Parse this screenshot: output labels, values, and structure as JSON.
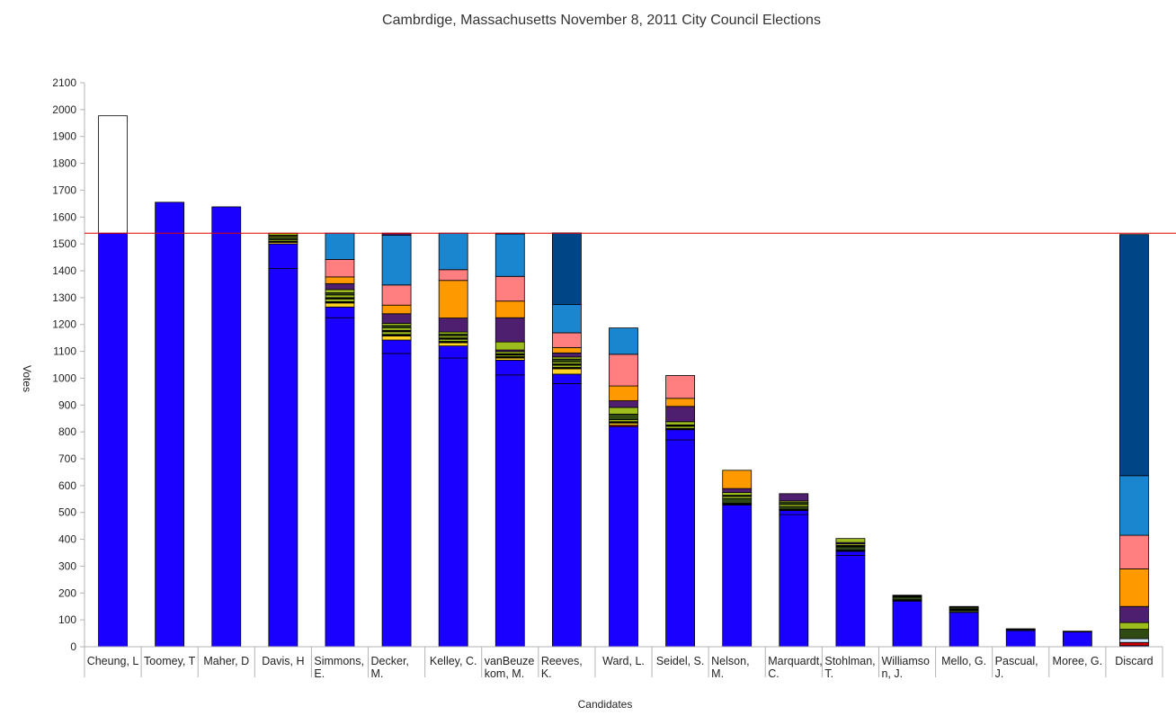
{
  "chart_data": {
    "type": "bar",
    "stacked": true,
    "title": "Cambrdige, Massachusetts November 8, 2011 City Council Elections",
    "xlabel": "Candidates",
    "ylabel": "Votes",
    "ylim": [
      0,
      2100
    ],
    "yticks": [
      0,
      100,
      200,
      300,
      400,
      500,
      600,
      700,
      800,
      900,
      1000,
      1100,
      1200,
      1300,
      1400,
      1500,
      1600,
      1700,
      1800,
      1900,
      2000,
      2100
    ],
    "grid": false,
    "legend": "none",
    "quota_line": 1540,
    "categories": [
      [
        "Cheung, L"
      ],
      [
        "Toomey, T"
      ],
      [
        "Maher, D"
      ],
      [
        "Davis, H"
      ],
      [
        "Simmons,",
        "E."
      ],
      [
        "Decker,",
        "M."
      ],
      [
        "Kelley, C."
      ],
      [
        "vanBeuze",
        "kom, M."
      ],
      [
        "Reeves,",
        "K."
      ],
      [
        "Ward, L."
      ],
      [
        "Seidel, S."
      ],
      [
        "Nelson,",
        "M."
      ],
      [
        "Marquardt,",
        "C."
      ],
      [
        "Stohlman,",
        "T."
      ],
      [
        "Williamso",
        "n, J."
      ],
      [
        "Mello, G."
      ],
      [
        "Pascual,",
        "J."
      ],
      [
        "Moree, G."
      ],
      [
        "Discard"
      ]
    ],
    "colors": {
      "blue": "#1a00ff",
      "red": "#cc0000",
      "lightblue": "#cfe6ff",
      "olive": "#2f4a14",
      "yellowgreen": "#9dbc1e",
      "purple": "#4e1f6e",
      "orange": "#ff9900",
      "pink": "#ff7f80",
      "skyblue": "#1a86d0",
      "navy": "#004586",
      "black": "#000000",
      "yellow": "#ffd320",
      "white": "#ffffff",
      "quota": "#e00000"
    },
    "series": [
      {
        "candidate": "Cheung, L",
        "segments": [
          [
            "blue",
            1540
          ],
          [
            "white",
            437
          ]
        ]
      },
      {
        "candidate": "Toomey, T",
        "segments": [
          [
            "blue",
            1655
          ]
        ]
      },
      {
        "candidate": "Maher, D",
        "segments": [
          [
            "blue",
            1638
          ]
        ]
      },
      {
        "candidate": "Davis, H",
        "segments": [
          [
            "blue",
            1408
          ],
          [
            "blue",
            92
          ],
          [
            "yellow",
            6
          ],
          [
            "black",
            4
          ],
          [
            "yellowgreen",
            6
          ],
          [
            "olive",
            6
          ],
          [
            "yellowgreen",
            6
          ],
          [
            "black",
            4
          ],
          [
            "yellowgreen",
            8
          ]
        ]
      },
      {
        "candidate": "Simmons, E.",
        "segments": [
          [
            "blue",
            1225
          ],
          [
            "blue",
            40
          ],
          [
            "yellow",
            15
          ],
          [
            "black",
            5
          ],
          [
            "yellowgreen",
            10
          ],
          [
            "black",
            5
          ],
          [
            "yellowgreen",
            10
          ],
          [
            "olive",
            8
          ],
          [
            "yellowgreen",
            12
          ],
          [
            "purple",
            22
          ],
          [
            "orange",
            25
          ],
          [
            "pink",
            65
          ],
          [
            "skyblue",
            98
          ]
        ]
      },
      {
        "candidate": "Decker, M.",
        "segments": [
          [
            "blue",
            1092
          ],
          [
            "blue",
            50
          ],
          [
            "yellow",
            15
          ],
          [
            "black",
            6
          ],
          [
            "yellowgreen",
            10
          ],
          [
            "black",
            5
          ],
          [
            "yellowgreen",
            10
          ],
          [
            "olive",
            8
          ],
          [
            "yellowgreen",
            8
          ],
          [
            "purple",
            36
          ],
          [
            "orange",
            32
          ],
          [
            "pink",
            75
          ],
          [
            "skyblue",
            185
          ],
          [
            "purple",
            8
          ]
        ]
      },
      {
        "candidate": "Kelley, C.",
        "segments": [
          [
            "blue",
            1075
          ],
          [
            "blue",
            45
          ],
          [
            "yellow",
            12
          ],
          [
            "black",
            5
          ],
          [
            "yellowgreen",
            8
          ],
          [
            "black",
            5
          ],
          [
            "yellowgreen",
            8
          ],
          [
            "olive",
            6
          ],
          [
            "yellowgreen",
            8
          ],
          [
            "purple",
            52
          ],
          [
            "orange",
            140
          ],
          [
            "pink",
            40
          ],
          [
            "skyblue",
            136
          ]
        ]
      },
      {
        "candidate": "vanBeuzekom, M.",
        "segments": [
          [
            "blue",
            1012
          ],
          [
            "blue",
            55
          ],
          [
            "yellow",
            8
          ],
          [
            "black",
            5
          ],
          [
            "yellowgreen",
            6
          ],
          [
            "black",
            5
          ],
          [
            "yellowgreen",
            8
          ],
          [
            "purple",
            6
          ],
          [
            "yellowgreen",
            30
          ],
          [
            "purple",
            90
          ],
          [
            "orange",
            62
          ],
          [
            "pink",
            92
          ],
          [
            "skyblue",
            158
          ],
          [
            "purple",
            3
          ]
        ]
      },
      {
        "candidate": "Reeves, K.",
        "segments": [
          [
            "blue",
            980
          ],
          [
            "blue",
            35
          ],
          [
            "yellow",
            20
          ],
          [
            "black",
            5
          ],
          [
            "yellowgreen",
            8
          ],
          [
            "black",
            5
          ],
          [
            "yellowgreen",
            8
          ],
          [
            "olive",
            10
          ],
          [
            "yellowgreen",
            8
          ],
          [
            "purple",
            15
          ],
          [
            "orange",
            20
          ],
          [
            "pink",
            55
          ],
          [
            "skyblue",
            105
          ],
          [
            "navy",
            267
          ]
        ]
      },
      {
        "candidate": "Ward, L.",
        "segments": [
          [
            "blue",
            820
          ],
          [
            "red",
            5
          ],
          [
            "yellow",
            8
          ],
          [
            "black",
            5
          ],
          [
            "yellowgreen",
            8
          ],
          [
            "olive",
            20
          ],
          [
            "yellowgreen",
            25
          ],
          [
            "purple",
            25
          ],
          [
            "orange",
            55
          ],
          [
            "pink",
            118
          ],
          [
            "skyblue",
            98
          ]
        ]
      },
      {
        "candidate": "Seidel, S.",
        "segments": [
          [
            "blue",
            770
          ],
          [
            "blue",
            38
          ],
          [
            "black",
            5
          ],
          [
            "yellowgreen",
            8
          ],
          [
            "black",
            5
          ],
          [
            "yellowgreen",
            12
          ],
          [
            "purple",
            57
          ],
          [
            "orange",
            30
          ],
          [
            "pink",
            85
          ]
        ]
      },
      {
        "candidate": "Nelson, M.",
        "segments": [
          [
            "blue",
            528
          ],
          [
            "black",
            6
          ],
          [
            "olive",
            18
          ],
          [
            "yellowgreen",
            8
          ],
          [
            "black",
            4
          ],
          [
            "yellowgreen",
            10
          ],
          [
            "purple",
            15
          ],
          [
            "orange",
            68
          ]
        ]
      },
      {
        "candidate": "Marquardt, C.",
        "segments": [
          [
            "blue",
            492
          ],
          [
            "blue",
            15
          ],
          [
            "black",
            5
          ],
          [
            "olive",
            10
          ],
          [
            "yellowgreen",
            8
          ],
          [
            "olive",
            7
          ],
          [
            "yellowgreen",
            6
          ],
          [
            "purple",
            27
          ]
        ]
      },
      {
        "candidate": "Stohlman, T.",
        "segments": [
          [
            "blue",
            340
          ],
          [
            "blue",
            15
          ],
          [
            "black",
            5
          ],
          [
            "olive",
            12
          ],
          [
            "black",
            5
          ],
          [
            "yellowgreen",
            6
          ],
          [
            "purple",
            5
          ],
          [
            "yellowgreen",
            15
          ]
        ]
      },
      {
        "candidate": "Williamson, J.",
        "segments": [
          [
            "blue",
            170
          ],
          [
            "black",
            5
          ],
          [
            "olive",
            10
          ],
          [
            "black",
            7
          ]
        ]
      },
      {
        "candidate": "Mello, G.",
        "segments": [
          [
            "blue",
            128
          ],
          [
            "olive",
            8
          ],
          [
            "black",
            5
          ],
          [
            "olive",
            6
          ],
          [
            "black",
            3
          ]
        ]
      },
      {
        "candidate": "Pascual, J.",
        "segments": [
          [
            "blue",
            60
          ],
          [
            "olive",
            4
          ],
          [
            "black",
            3
          ]
        ]
      },
      {
        "candidate": "Moree, G.",
        "segments": [
          [
            "blue",
            55
          ],
          [
            "black",
            3
          ]
        ]
      },
      {
        "candidate": "Discard",
        "segments": [
          [
            "blue",
            4
          ],
          [
            "red",
            12
          ],
          [
            "lightblue",
            14
          ],
          [
            "olive",
            35
          ],
          [
            "yellowgreen",
            25
          ],
          [
            "purple",
            60
          ],
          [
            "orange",
            140
          ],
          [
            "pink",
            125
          ],
          [
            "skyblue",
            222
          ],
          [
            "navy",
            898
          ]
        ]
      }
    ]
  }
}
